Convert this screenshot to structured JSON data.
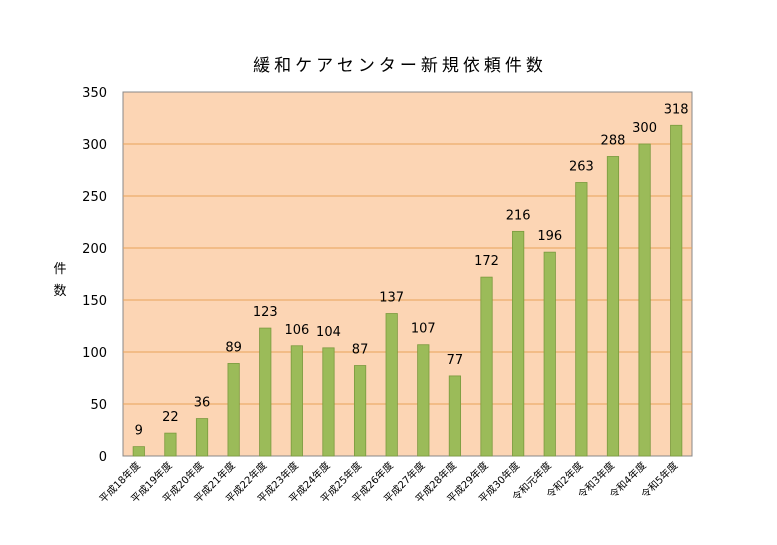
{
  "chart_data": {
    "type": "bar",
    "title": "緩和ケアセンター新規依頼件数",
    "ylabel": "件数",
    "xlabel": "",
    "ylim": [
      0,
      350
    ],
    "yticks": [
      0,
      50,
      100,
      150,
      200,
      250,
      300,
      350
    ],
    "grid": true,
    "legend": "none",
    "categories": [
      "平成18年度",
      "平成19年度",
      "平成20年度",
      "平成21年度",
      "平成22年度",
      "平成23年度",
      "平成24年度",
      "平成25年度",
      "平成26年度",
      "平成27年度",
      "平成28年度",
      "平成29年度",
      "平成30年度",
      "令和元年度",
      "令和2年度",
      "令和3年度",
      "令和4年度",
      "令和5年度"
    ],
    "values": [
      9,
      22,
      36,
      89,
      123,
      106,
      104,
      87,
      137,
      107,
      77,
      172,
      216,
      196,
      263,
      288,
      300,
      318
    ],
    "colors": {
      "plot_background": "#fcd5b4",
      "bar_fill": "#9bbb59",
      "bar_stroke": "#7a9a3e",
      "gridline": "#e8a25a"
    }
  }
}
